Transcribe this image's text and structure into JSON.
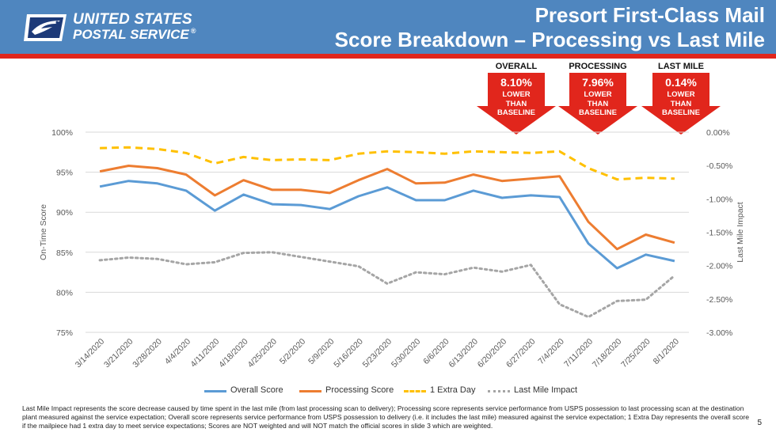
{
  "logo": {
    "line1": "UNITED STATES",
    "line2": "POSTAL SERVICE",
    "registered": "®"
  },
  "title": {
    "line1": "Presort First-Class Mail",
    "line2": "Score Breakdown – Processing vs Last Mile"
  },
  "callouts": [
    {
      "label": "OVERALL",
      "value": "8.10%",
      "text": "LOWER\nTHAN\nBASELINE"
    },
    {
      "label": "PROCESSING",
      "value": "7.96%",
      "text": "LOWER\nTHAN\nBASELINE"
    },
    {
      "label": "LAST MILE",
      "value": "0.14%",
      "text": "LOWER\nTHAN\nBASELINE"
    }
  ],
  "colors": {
    "header": "#4f86bf",
    "accent_red": "#e1261c",
    "overall": "#5b9bd5",
    "processing": "#ed7d31",
    "extra_day": "#ffc000",
    "last_mile": "#a5a5a5"
  },
  "chart_data": {
    "type": "line",
    "categories": [
      "3/14/2020",
      "3/21/2020",
      "3/28/2020",
      "4/4/2020",
      "4/11/2020",
      "4/18/2020",
      "4/25/2020",
      "5/2/2020",
      "5/9/2020",
      "5/16/2020",
      "5/23/2020",
      "5/30/2020",
      "6/6/2020",
      "6/13/2020",
      "6/20/2020",
      "6/27/2020",
      "7/4/2020",
      "7/11/2020",
      "7/18/2020",
      "7/25/2020",
      "8/1/2020"
    ],
    "y_left": {
      "label": "On-Time Score",
      "min": 75,
      "max": 100,
      "ticks": [
        75,
        80,
        85,
        90,
        95,
        100
      ],
      "tick_labels": [
        "75%",
        "80%",
        "85%",
        "90%",
        "95%",
        "100%"
      ]
    },
    "y_right": {
      "label": "Last Mile Impact",
      "min": -3.0,
      "max": 0,
      "ticks": [
        0,
        -0.5,
        -1.0,
        -1.5,
        -2.0,
        -2.5,
        -3.0
      ],
      "tick_labels": [
        "0.00%",
        "-0.50%",
        "-1.00%",
        "-1.50%",
        "-2.00%",
        "-2.50%",
        "-3.00%"
      ]
    },
    "series": [
      {
        "name": "Overall Score",
        "axis": "left",
        "style": "solid",
        "color": "#5b9bd5",
        "values": [
          93.2,
          93.9,
          93.6,
          92.7,
          90.2,
          92.2,
          91.0,
          90.9,
          90.4,
          92.0,
          93.1,
          91.5,
          91.5,
          92.7,
          91.8,
          92.1,
          91.9,
          86.1,
          83.0,
          84.7,
          83.9
        ]
      },
      {
        "name": "Processing Score",
        "axis": "left",
        "style": "solid",
        "color": "#ed7d31",
        "values": [
          95.1,
          95.8,
          95.5,
          94.7,
          92.1,
          94.0,
          92.8,
          92.8,
          92.4,
          94.0,
          95.4,
          93.6,
          93.7,
          94.7,
          93.9,
          94.2,
          94.5,
          88.8,
          85.4,
          87.2,
          86.2
        ]
      },
      {
        "name": "1 Extra Day",
        "axis": "left",
        "style": "dashed",
        "color": "#ffc000",
        "values": [
          98.0,
          98.1,
          97.9,
          97.4,
          96.1,
          96.9,
          96.5,
          96.6,
          96.5,
          97.3,
          97.6,
          97.5,
          97.3,
          97.6,
          97.5,
          97.4,
          97.6,
          95.5,
          94.1,
          94.3,
          94.2
        ]
      },
      {
        "name": "Last Mile Impact",
        "axis": "right",
        "style": "dotted",
        "color": "#a5a5a5",
        "values": [
          -1.92,
          -1.88,
          -1.9,
          -1.98,
          -1.95,
          -1.81,
          -1.8,
          -1.87,
          -1.94,
          -2.01,
          -2.27,
          -2.1,
          -2.13,
          -2.03,
          -2.09,
          -1.99,
          -2.58,
          -2.77,
          -2.53,
          -2.51,
          -2.15
        ]
      }
    ]
  },
  "footnote": "Last Mile Impact represents the score decrease caused by time spent in the last mile (from last processing scan to delivery); Processing score represents service performance from USPS possession to last processing scan at the destination plant measured against the service expectation; Overall score represents service performance from USPS possession to delivery (i.e. it includes the last mile) measured against the service expectation; 1 Extra Day represents the overall score if the mailpiece had 1 extra day to meet service expectations; Scores are NOT weighted and will NOT match the official scores in slide 3 which are weighted.",
  "page_number": "5"
}
